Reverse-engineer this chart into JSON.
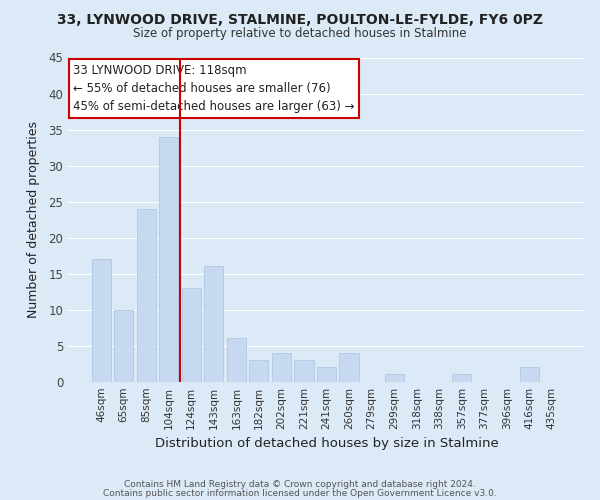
{
  "title": "33, LYNWOOD DRIVE, STALMINE, POULTON-LE-FYLDE, FY6 0PZ",
  "subtitle": "Size of property relative to detached houses in Stalmine",
  "xlabel": "Distribution of detached houses by size in Stalmine",
  "ylabel": "Number of detached properties",
  "bar_labels": [
    "46sqm",
    "65sqm",
    "85sqm",
    "104sqm",
    "124sqm",
    "143sqm",
    "163sqm",
    "182sqm",
    "202sqm",
    "221sqm",
    "241sqm",
    "260sqm",
    "279sqm",
    "299sqm",
    "318sqm",
    "338sqm",
    "357sqm",
    "377sqm",
    "396sqm",
    "416sqm",
    "435sqm"
  ],
  "bar_values": [
    17,
    10,
    24,
    34,
    13,
    16,
    6,
    3,
    4,
    3,
    2,
    4,
    0,
    1,
    0,
    0,
    1,
    0,
    0,
    2,
    0
  ],
  "bar_color": "#c6d9f0",
  "bar_edge_color": "#c6d9f0",
  "grid_color": "#ffffff",
  "bg_color": "#dce9f7",
  "marker_color": "#cc0000",
  "annotation_title": "33 LYNWOOD DRIVE: 118sqm",
  "annotation_line1": "← 55% of detached houses are smaller (76)",
  "annotation_line2": "45% of semi-detached houses are larger (63) →",
  "annotation_box_color": "#ffffff",
  "annotation_box_edge": "#cc0000",
  "ylim": [
    0,
    45
  ],
  "yticks": [
    0,
    5,
    10,
    15,
    20,
    25,
    30,
    35,
    40,
    45
  ],
  "footer1": "Contains HM Land Registry data © Crown copyright and database right 2024.",
  "footer2": "Contains public sector information licensed under the Open Government Licence v3.0."
}
